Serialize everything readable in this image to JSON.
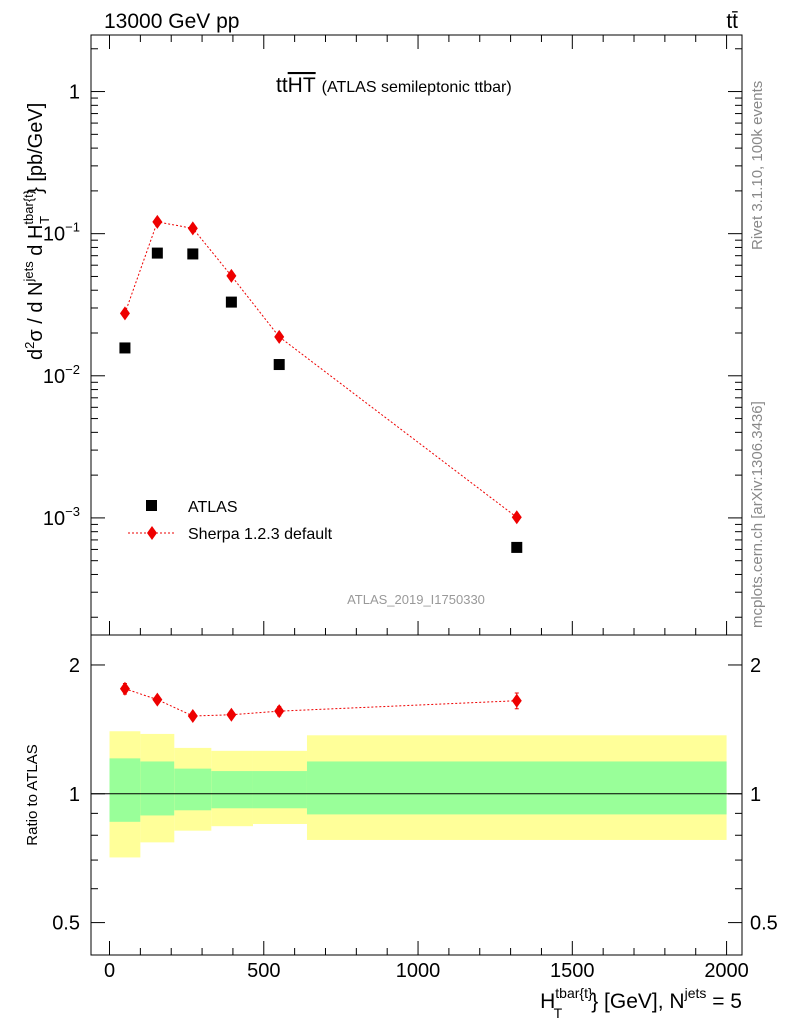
{
  "header": {
    "left": "13000 GeV pp",
    "right": "tt̄"
  },
  "side": {
    "rivet": "Rivet 3.1.10,  100k events",
    "mcplots": "mcplots.cern.ch [arXiv:1306.3436]"
  },
  "chart_data": [
    {
      "type": "scatter",
      "title": "tt̅H̅T̅ (ATLAS semileptonic ttbar)",
      "watermark": "ATLAS_2019_I1750330",
      "ylabel": "d²σ / d N^jets d H_T^tbar{t} [pb/GeV]",
      "yscale": "log",
      "ylim": [
        0.00015,
        2.5
      ],
      "xlim": [
        -60,
        2050
      ],
      "yticks": [
        "10^-3",
        "10^-2",
        "10^-1",
        "1"
      ],
      "legend_position": "lower-left",
      "colors": {
        "data": "#000000",
        "mc": "#ee0000"
      },
      "series": [
        {
          "name": "ATLAS",
          "marker": "square",
          "x": [
            50,
            155,
            270,
            395,
            550,
            1320
          ],
          "y": [
            0.0157,
            0.073,
            0.072,
            0.033,
            0.012,
            0.00062
          ]
        },
        {
          "name": "Sherpa 1.2.3 default",
          "marker": "diamond",
          "line": "dotted",
          "x": [
            50,
            155,
            270,
            395,
            550,
            1320
          ],
          "y": [
            0.0275,
            0.121,
            0.109,
            0.0505,
            0.0188,
            0.00101
          ]
        }
      ]
    },
    {
      "type": "scatter",
      "ylabel": "Ratio to ATLAS",
      "xlabel": "H_T^tbar{t} [GeV], N^jets = 5",
      "ylim": [
        0.42,
        2.35
      ],
      "xlim": [
        -60,
        2050
      ],
      "xticks": [
        0,
        500,
        1000,
        1500,
        2000
      ],
      "yticks": [
        0.5,
        1,
        2
      ],
      "reference": 1,
      "bands": [
        {
          "x0": 0,
          "x1": 100,
          "yellow": [
            0.71,
            1.4
          ],
          "green": [
            0.86,
            1.21
          ]
        },
        {
          "x0": 100,
          "x1": 210,
          "yellow": [
            0.77,
            1.38
          ],
          "green": [
            0.89,
            1.19
          ]
        },
        {
          "x0": 210,
          "x1": 330,
          "yellow": [
            0.82,
            1.28
          ],
          "green": [
            0.915,
            1.145
          ]
        },
        {
          "x0": 330,
          "x1": 465,
          "yellow": [
            0.84,
            1.26
          ],
          "green": [
            0.925,
            1.13
          ]
        },
        {
          "x0": 465,
          "x1": 640,
          "yellow": [
            0.85,
            1.26
          ],
          "green": [
            0.925,
            1.13
          ]
        },
        {
          "x0": 640,
          "x1": 2000,
          "yellow": [
            0.78,
            1.37
          ],
          "green": [
            0.895,
            1.19
          ]
        }
      ],
      "series": [
        {
          "name": "Sherpa 1.2.3 default",
          "x": [
            50,
            155,
            270,
            395,
            550,
            1320
          ],
          "y": [
            1.76,
            1.66,
            1.52,
            1.53,
            1.56,
            1.65
          ],
          "err": [
            0.05,
            0.03,
            0.03,
            0.03,
            0.04,
            0.07
          ]
        }
      ]
    }
  ]
}
